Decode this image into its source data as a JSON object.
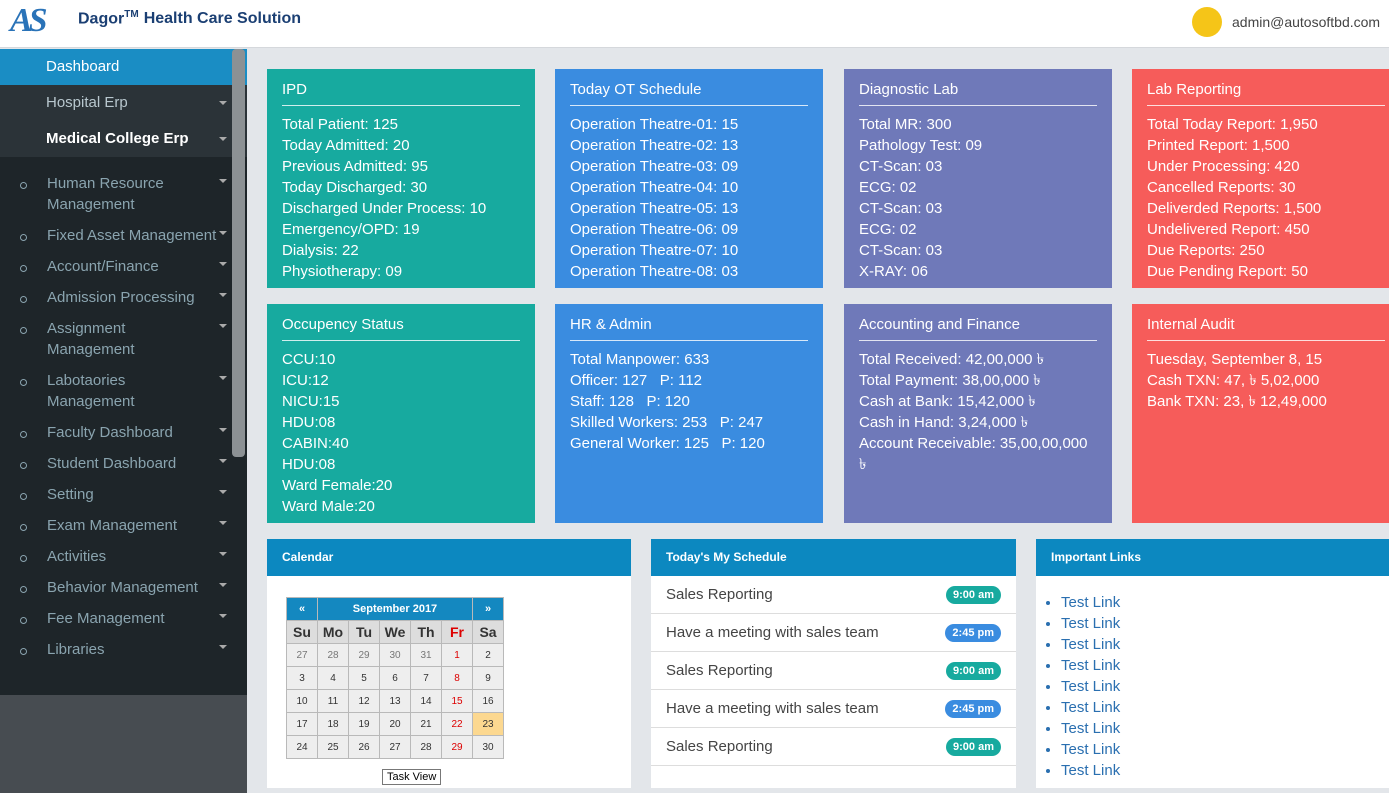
{
  "header": {
    "logo": "AS",
    "brand": "Dagor",
    "trademark": "TM",
    "brand_suffix": "Health Care Solution",
    "user": "admin@autosoftbd.com"
  },
  "sidebar": {
    "items": [
      "Dashboard",
      "Hospital Erp",
      "Medical College Erp"
    ],
    "sub_items": [
      "Human Resource Management",
      "Fixed Asset Management",
      "Account/Finance",
      "Admission Processing",
      "Assignment Management",
      "Labotaories Management",
      "Faculty Dashboard",
      "Student Dashboard",
      "Setting",
      "Exam Management",
      "Activities",
      "Behavior Management",
      "Fee Management",
      "Libraries"
    ]
  },
  "cards": [
    {
      "title": "IPD",
      "color": "#17aa9f",
      "lines": [
        "Total Patient: 125",
        "Today Admitted: 20",
        "Previous Admitted: 95",
        "Today Discharged: 30",
        "Discharged Under Process: 10",
        "Emergency/OPD: 19",
        "Dialysis: 22",
        "Physiotherapy: 09"
      ]
    },
    {
      "title": "Today OT Schedule",
      "color": "#3a8ce0",
      "lines": [
        "Operation Theatre-01: 15",
        "Operation Theatre-02: 13",
        "Operation Theatre-03: 09",
        "Operation Theatre-04: 10",
        "Operation Theatre-05: 13",
        "Operation Theatre-06: 09",
        "Operation Theatre-07: 10",
        "Operation Theatre-08: 03"
      ]
    },
    {
      "title": "Diagnostic Lab",
      "color": "#6f79b9",
      "lines": [
        "Total MR: 300",
        "Pathology Test: 09",
        "CT-Scan: 03",
        "ECG: 02",
        "CT-Scan: 03",
        "ECG: 02",
        "CT-Scan: 03",
        "X-RAY: 06"
      ]
    },
    {
      "title": "Lab Reporting",
      "color": "#f65c5a",
      "lines": [
        "Total Today Report: 1,950",
        "Printed Report: 1,500",
        "Under Processing: 420",
        "Cancelled Reports: 30",
        "Deliverded Reports: 1,500",
        "Undelivered Report: 450",
        "Due Reports: 250",
        "Due Pending Report: 50"
      ]
    },
    {
      "title": "Occupency Status",
      "color": "#17aa9f",
      "lines": [
        "CCU:10",
        "ICU:12",
        "NICU:15",
        "HDU:08",
        "CABIN:40",
        "HDU:08",
        "Ward Female:20",
        "Ward Male:20"
      ]
    },
    {
      "title": "HR & Admin",
      "color": "#3a8ce0",
      "lines": [
        "Total Manpower: 633",
        "Officer: 127   P: 112",
        "Staff: 128   P: 120",
        "Skilled Workers: 253   P: 247",
        "General Worker: 125   P: 120"
      ]
    },
    {
      "title": "Accounting and Finance",
      "color": "#6f79b9",
      "lines": [
        "Total Received: 42,00,000 ৳",
        "Total Payment: 38,00,000 ৳",
        "Cash at Bank: 15,42,000 ৳",
        "Cash in Hand: 3,24,000 ৳",
        "Account Receivable: 35,00,00,000 ৳"
      ]
    },
    {
      "title": "Internal Audit",
      "color": "#f65c5a",
      "lines": [
        "Tuesday, September 8, 15",
        "Cash TXN: 47, ৳ 5,02,000",
        "Bank TXN: 23, ৳ 12,49,000"
      ]
    }
  ],
  "calendar": {
    "title": "Calendar",
    "prev": "«",
    "month": "September 2017",
    "next": "»",
    "weekdays": [
      "Su",
      "Mo",
      "Tu",
      "We",
      "Th",
      "Fr",
      "Sa"
    ],
    "weeks": [
      [
        27,
        28,
        29,
        30,
        31,
        1,
        2
      ],
      [
        3,
        4,
        5,
        6,
        7,
        8,
        9
      ],
      [
        10,
        11,
        12,
        13,
        14,
        15,
        16
      ],
      [
        17,
        18,
        19,
        20,
        21,
        22,
        23
      ],
      [
        24,
        25,
        26,
        27,
        28,
        29,
        30
      ]
    ],
    "tooltip": "Task View"
  },
  "schedule": {
    "title": "Today's My Schedule",
    "items": [
      {
        "text": "Sales Reporting",
        "time": "9:00 am",
        "color": "#17aa9f"
      },
      {
        "text": "Have a meeting with sales team",
        "time": "2:45 pm",
        "color": "#3a8ce0"
      },
      {
        "text": "Sales Reporting",
        "time": "9:00 am",
        "color": "#17aa9f"
      },
      {
        "text": "Have a meeting with sales team",
        "time": "2:45 pm",
        "color": "#3a8ce0"
      },
      {
        "text": "Sales Reporting",
        "time": "9:00 am",
        "color": "#17aa9f"
      }
    ]
  },
  "links": {
    "title": "Important Links",
    "items": [
      "Test Link",
      "Test Link",
      "Test Link",
      "Test Link",
      "Test Link",
      "Test Link",
      "Test Link",
      "Test Link",
      "Test Link"
    ]
  }
}
